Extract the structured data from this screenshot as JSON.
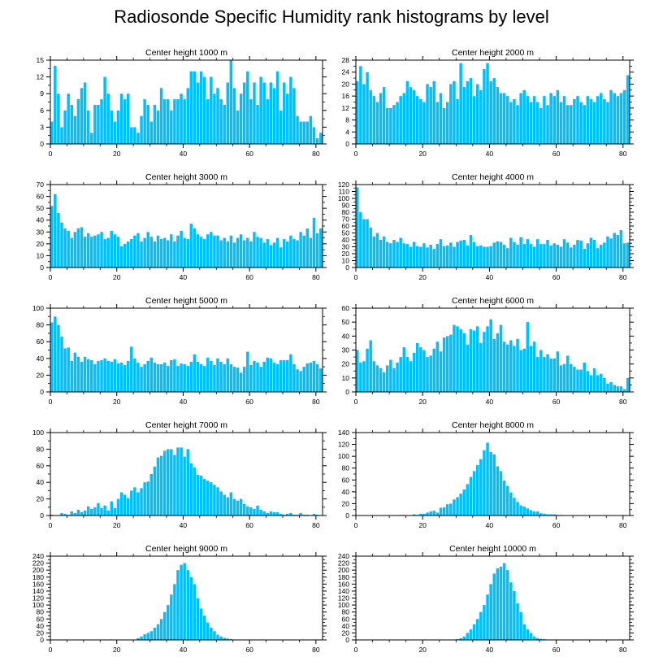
{
  "page_title": "Radiosonde Specific Humidity rank histograms by level",
  "colors": {
    "bar": "#00BFFF",
    "axis": "#000000",
    "background": "#FFFFFF"
  },
  "chart_data": [
    {
      "type": "bar",
      "title": "Center height 1000 m",
      "xlim": [
        0,
        82
      ],
      "ylim": [
        0,
        15
      ],
      "yticks": [
        0,
        3,
        6,
        9,
        12,
        15
      ],
      "xticks": [
        0,
        20,
        40,
        60,
        80
      ],
      "values": [
        4,
        14,
        9,
        3,
        6,
        9,
        7,
        5,
        8,
        10,
        11,
        6,
        2,
        7,
        7,
        8,
        12,
        9,
        6,
        4,
        6,
        9,
        8,
        9,
        3,
        3,
        2,
        5,
        8,
        7,
        4,
        7,
        6,
        10,
        8,
        8,
        6,
        8,
        8,
        9,
        8,
        10,
        13,
        13,
        11,
        13,
        12,
        8,
        12,
        9,
        10,
        8,
        7,
        11,
        15,
        10,
        6,
        9,
        11,
        13,
        8,
        11,
        7,
        12,
        11,
        8,
        11,
        10,
        13,
        6,
        11,
        9,
        12,
        10,
        5,
        4,
        4,
        4,
        5,
        3,
        1,
        2
      ]
    },
    {
      "type": "bar",
      "title": "Center height 2000 m",
      "xlim": [
        0,
        82
      ],
      "ylim": [
        0,
        28
      ],
      "yticks": [
        0,
        4,
        8,
        12,
        16,
        20,
        24,
        28
      ],
      "xticks": [
        0,
        20,
        40,
        60,
        80
      ],
      "values": [
        21,
        26,
        20,
        24,
        18,
        16,
        14,
        17,
        19,
        12,
        12,
        13,
        14,
        16,
        17,
        21,
        19,
        18,
        16,
        15,
        14,
        20,
        19,
        21,
        14,
        17,
        12,
        14,
        20,
        21,
        15,
        27,
        19,
        21,
        22,
        16,
        20,
        18,
        25,
        27,
        21,
        22,
        19,
        17,
        17,
        16,
        14,
        15,
        13,
        17,
        18,
        16,
        14,
        16,
        14,
        12,
        16,
        13,
        17,
        16,
        18,
        14,
        16,
        13,
        13,
        15,
        16,
        14,
        13,
        16,
        15,
        14,
        16,
        17,
        15,
        14,
        18,
        17,
        16,
        17,
        18,
        23
      ]
    },
    {
      "type": "bar",
      "title": "Center height 3000 m",
      "xlim": [
        0,
        82
      ],
      "ylim": [
        0,
        70
      ],
      "yticks": [
        0,
        10,
        20,
        30,
        40,
        50,
        60,
        70
      ],
      "xticks": [
        0,
        20,
        40,
        60,
        80
      ],
      "values": [
        52,
        62,
        46,
        38,
        33,
        31,
        25,
        30,
        33,
        34,
        26,
        29,
        26,
        27,
        28,
        30,
        24,
        25,
        31,
        28,
        26,
        18,
        20,
        22,
        24,
        27,
        29,
        22,
        25,
        30,
        26,
        22,
        27,
        24,
        25,
        23,
        28,
        22,
        27,
        31,
        25,
        24,
        37,
        33,
        28,
        26,
        24,
        28,
        30,
        27,
        27,
        23,
        25,
        22,
        27,
        21,
        25,
        28,
        23,
        25,
        22,
        30,
        26,
        25,
        21,
        24,
        19,
        21,
        25,
        17,
        24,
        22,
        27,
        24,
        23,
        30,
        27,
        33,
        25,
        42,
        29,
        33
      ]
    },
    {
      "type": "bar",
      "title": "Center height 4000 m",
      "xlim": [
        0,
        82
      ],
      "ylim": [
        0,
        120
      ],
      "yticks": [
        0,
        10,
        20,
        30,
        40,
        50,
        60,
        70,
        80,
        90,
        100,
        110,
        120
      ],
      "xticks": [
        0,
        20,
        40,
        60,
        80
      ],
      "values": [
        116,
        80,
        70,
        70,
        58,
        45,
        50,
        40,
        45,
        37,
        35,
        40,
        37,
        43,
        35,
        34,
        30,
        37,
        31,
        30,
        35,
        29,
        33,
        27,
        34,
        41,
        31,
        32,
        36,
        30,
        37,
        39,
        40,
        32,
        47,
        37,
        31,
        32,
        30,
        30,
        31,
        36,
        38,
        37,
        33,
        28,
        43,
        37,
        33,
        44,
        34,
        41,
        34,
        30,
        41,
        34,
        34,
        40,
        32,
        35,
        33,
        30,
        41,
        36,
        29,
        33,
        40,
        39,
        27,
        35,
        43,
        40,
        28,
        33,
        36,
        45,
        42,
        50,
        47,
        54,
        35,
        36
      ]
    },
    {
      "type": "bar",
      "title": "Center height 5000 m",
      "xlim": [
        0,
        82
      ],
      "ylim": [
        0,
        100
      ],
      "yticks": [
        0,
        20,
        40,
        60,
        80,
        100
      ],
      "xticks": [
        0,
        20,
        40,
        60,
        80
      ],
      "values": [
        83,
        90,
        80,
        66,
        52,
        53,
        37,
        47,
        42,
        36,
        42,
        39,
        38,
        33,
        37,
        38,
        40,
        37,
        36,
        39,
        34,
        35,
        32,
        37,
        54,
        40,
        35,
        30,
        33,
        37,
        41,
        35,
        33,
        33,
        35,
        31,
        38,
        39,
        31,
        34,
        33,
        31,
        36,
        45,
        36,
        33,
        31,
        41,
        37,
        32,
        40,
        36,
        33,
        40,
        33,
        30,
        29,
        23,
        30,
        48,
        32,
        37,
        35,
        30,
        36,
        41,
        40,
        35,
        33,
        38,
        38,
        38,
        45,
        33,
        27,
        25,
        30,
        34,
        35,
        37,
        33,
        28
      ]
    },
    {
      "type": "bar",
      "title": "Center height 6000 m",
      "xlim": [
        0,
        82
      ],
      "ylim": [
        0,
        60
      ],
      "yticks": [
        0,
        10,
        20,
        30,
        40,
        50,
        60
      ],
      "xticks": [
        0,
        20,
        40,
        60,
        80
      ],
      "values": [
        30,
        21,
        22,
        31,
        37,
        22,
        19,
        17,
        14,
        19,
        23,
        17,
        21,
        25,
        32,
        25,
        22,
        28,
        35,
        32,
        30,
        25,
        26,
        31,
        36,
        29,
        39,
        40,
        41,
        48,
        47,
        45,
        42,
        34,
        45,
        44,
        47,
        35,
        43,
        47,
        52,
        38,
        42,
        48,
        36,
        34,
        37,
        33,
        38,
        30,
        31,
        50,
        33,
        36,
        25,
        30,
        25,
        27,
        24,
        24,
        29,
        19,
        20,
        26,
        20,
        18,
        16,
        16,
        21,
        15,
        12,
        17,
        12,
        13,
        10,
        6,
        7,
        5,
        4,
        4,
        2,
        10
      ]
    },
    {
      "type": "bar",
      "title": "Center height 7000 m",
      "xlim": [
        0,
        82
      ],
      "ylim": [
        0,
        100
      ],
      "yticks": [
        0,
        20,
        40,
        60,
        80,
        100
      ],
      "xticks": [
        0,
        20,
        40,
        60,
        80
      ],
      "values": [
        1,
        0,
        0,
        3,
        2,
        1,
        5,
        3,
        7,
        4,
        6,
        11,
        8,
        10,
        15,
        9,
        12,
        6,
        17,
        9,
        20,
        28,
        25,
        21,
        30,
        34,
        28,
        33,
        40,
        41,
        50,
        59,
        70,
        72,
        78,
        80,
        80,
        73,
        82,
        82,
        71,
        80,
        63,
        58,
        49,
        48,
        44,
        42,
        40,
        37,
        34,
        29,
        25,
        22,
        28,
        20,
        18,
        20,
        14,
        11,
        10,
        8,
        12,
        7,
        5,
        3,
        5,
        4,
        4,
        2,
        1,
        2,
        3,
        1,
        1,
        3,
        1,
        1,
        0,
        2,
        1,
        0
      ]
    },
    {
      "type": "bar",
      "title": "Center height 8000 m",
      "xlim": [
        0,
        82
      ],
      "ylim": [
        0,
        140
      ],
      "yticks": [
        0,
        20,
        40,
        60,
        80,
        100,
        120,
        140
      ],
      "xticks": [
        0,
        20,
        40,
        60,
        80
      ],
      "values": [
        0,
        0,
        0,
        0,
        0,
        0,
        0,
        0,
        0,
        0,
        0,
        0,
        0,
        1,
        1,
        0,
        0,
        2,
        1,
        3,
        3,
        5,
        7,
        8,
        5,
        13,
        14,
        19,
        20,
        27,
        31,
        37,
        44,
        53,
        65,
        75,
        85,
        95,
        110,
        123,
        107,
        103,
        83,
        75,
        59,
        50,
        39,
        30,
        23,
        17,
        15,
        12,
        9,
        7,
        7,
        4,
        3,
        2,
        2,
        2,
        1,
        1,
        0,
        0,
        0,
        0,
        0,
        0,
        0,
        0,
        0,
        0,
        0,
        0,
        0,
        0,
        0,
        0,
        0,
        0,
        0,
        0
      ]
    },
    {
      "type": "bar",
      "title": "Center height 9000 m",
      "xlim": [
        0,
        82
      ],
      "ylim": [
        0,
        240
      ],
      "yticks": [
        0,
        20,
        40,
        60,
        80,
        100,
        120,
        140,
        160,
        180,
        200,
        220,
        240
      ],
      "xticks": [
        0,
        20,
        40,
        60,
        80
      ],
      "values": [
        0,
        0,
        0,
        0,
        0,
        0,
        0,
        0,
        0,
        0,
        0,
        0,
        0,
        0,
        0,
        0,
        0,
        0,
        0,
        0,
        0,
        0,
        0,
        0,
        0,
        0,
        5,
        10,
        16,
        20,
        25,
        35,
        45,
        60,
        80,
        100,
        130,
        160,
        200,
        215,
        220,
        200,
        180,
        160,
        120,
        90,
        70,
        50,
        35,
        25,
        15,
        10,
        6,
        4,
        2,
        1,
        1,
        0,
        0,
        0,
        0,
        0,
        0,
        0,
        0,
        0,
        0,
        0,
        0,
        0,
        0,
        0,
        0,
        0,
        0,
        0,
        0,
        0,
        0,
        0,
        0,
        0
      ]
    },
    {
      "type": "bar",
      "title": "Center height 10000 m",
      "xlim": [
        0,
        82
      ],
      "ylim": [
        0,
        240
      ],
      "yticks": [
        0,
        20,
        40,
        60,
        80,
        100,
        120,
        140,
        160,
        180,
        200,
        220,
        240
      ],
      "xticks": [
        0,
        20,
        40,
        60,
        80
      ],
      "values": [
        0,
        0,
        0,
        0,
        0,
        0,
        0,
        0,
        0,
        0,
        0,
        0,
        0,
        0,
        0,
        0,
        0,
        0,
        0,
        0,
        0,
        0,
        0,
        0,
        0,
        0,
        0,
        0,
        0,
        1,
        2,
        5,
        10,
        20,
        30,
        45,
        60,
        80,
        100,
        130,
        160,
        190,
        205,
        210,
        220,
        200,
        165,
        140,
        105,
        80,
        45,
        30,
        20,
        10,
        5,
        3,
        2,
        1,
        0,
        0,
        0,
        0,
        0,
        0,
        0,
        0,
        0,
        0,
        0,
        0,
        0,
        0,
        0,
        0,
        0,
        0,
        0,
        0,
        0,
        0,
        0,
        0
      ]
    }
  ]
}
